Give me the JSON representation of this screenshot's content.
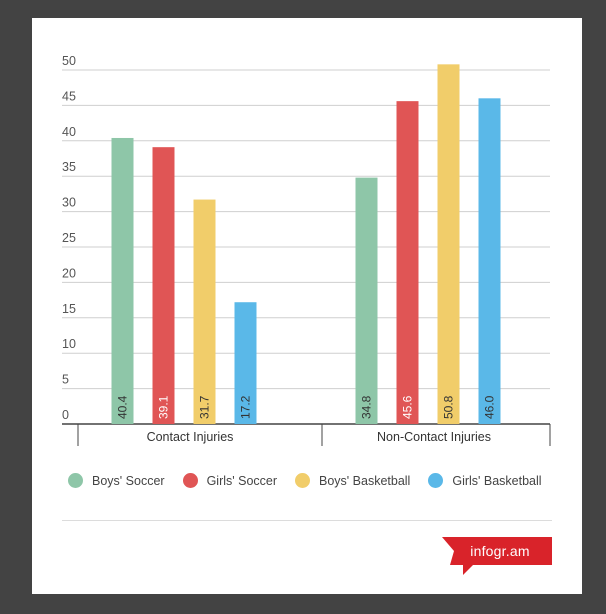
{
  "chart_data": {
    "type": "bar",
    "categories": [
      "Contact Injuries",
      "Non-Contact Injuries"
    ],
    "series": [
      {
        "name": "Boys' Soccer",
        "color": "#8ec6a8",
        "values": [
          40.4,
          34.8
        ]
      },
      {
        "name": "Girls' Soccer",
        "color": "#e05555",
        "values": [
          39.1,
          45.6
        ]
      },
      {
        "name": "Boys' Basketball",
        "color": "#f1cd6a",
        "values": [
          31.7,
          50.8
        ]
      },
      {
        "name": "Girls' Basketball",
        "color": "#5ab8e8",
        "values": [
          17.2,
          46.0
        ]
      }
    ],
    "value_labels": [
      [
        "40.4",
        "34.8"
      ],
      [
        "39.1",
        "45.6"
      ],
      [
        "31.7",
        "50.8"
      ],
      [
        "17.2",
        "46.0"
      ]
    ],
    "yticks": [
      "0",
      "5",
      "10",
      "15",
      "20",
      "25",
      "30",
      "35",
      "40",
      "45",
      "50"
    ],
    "ylim": [
      0,
      50
    ],
    "grid": true,
    "legend_position": "bottom"
  },
  "footer": {
    "logo_text": "infogr.am",
    "logo_color": "#d9232a"
  }
}
